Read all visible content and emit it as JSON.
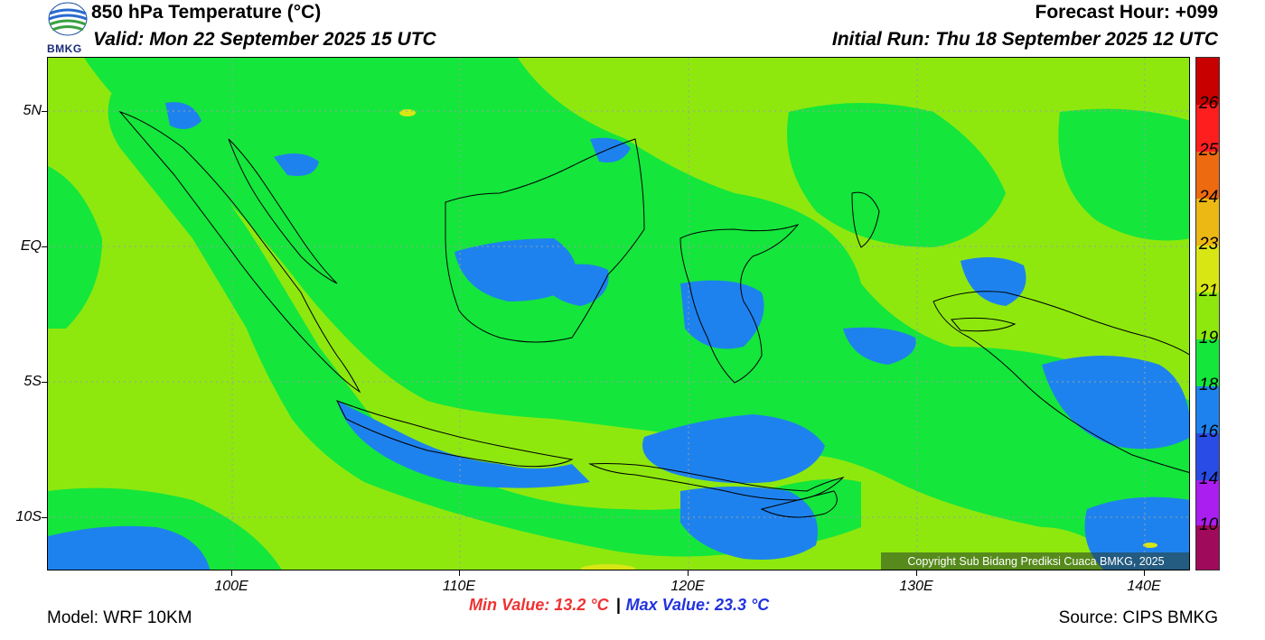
{
  "header": {
    "title": "850 hPa Temperature (°C)",
    "valid": "Valid: Mon 22 September 2025 15 UTC",
    "forecast_hour": "Forecast Hour: +099",
    "initial_run": "Initial Run: Thu 18 September 2025 12 UTC",
    "logo_text": "BMKG"
  },
  "axes": {
    "lat_labels": [
      "5N",
      "EQ",
      "5S",
      "10S"
    ],
    "lon_labels": [
      "100E",
      "110E",
      "120E",
      "130E",
      "140E"
    ]
  },
  "legend": {
    "labels": [
      "26",
      "25",
      "24",
      "23",
      "21",
      "19",
      "18",
      "16",
      "14",
      "10"
    ],
    "colors": [
      "#c80000",
      "#ff1e1e",
      "#ee6a10",
      "#ecb814",
      "#d8e614",
      "#8ee80e",
      "#14e63c",
      "#1e82ee",
      "#2a4ce6",
      "#aa1ef0",
      "#a00a5a"
    ]
  },
  "map": {
    "colors": {
      "warm": "#8ee80e",
      "mid": "#14e63c",
      "cool": "#1e82ee",
      "yellow": "#d8e614",
      "coast": "#000000"
    }
  },
  "copyright": "Copyright Sub Bidang Prediksi Cuaca BMKG, 2025",
  "stats": {
    "min": "Min Value: 13.2 °C",
    "separator": "|",
    "max": "Max Value: 23.3 °C"
  },
  "footer": {
    "model": "Model: WRF 10KM",
    "source": "Source: CIPS BMKG"
  }
}
